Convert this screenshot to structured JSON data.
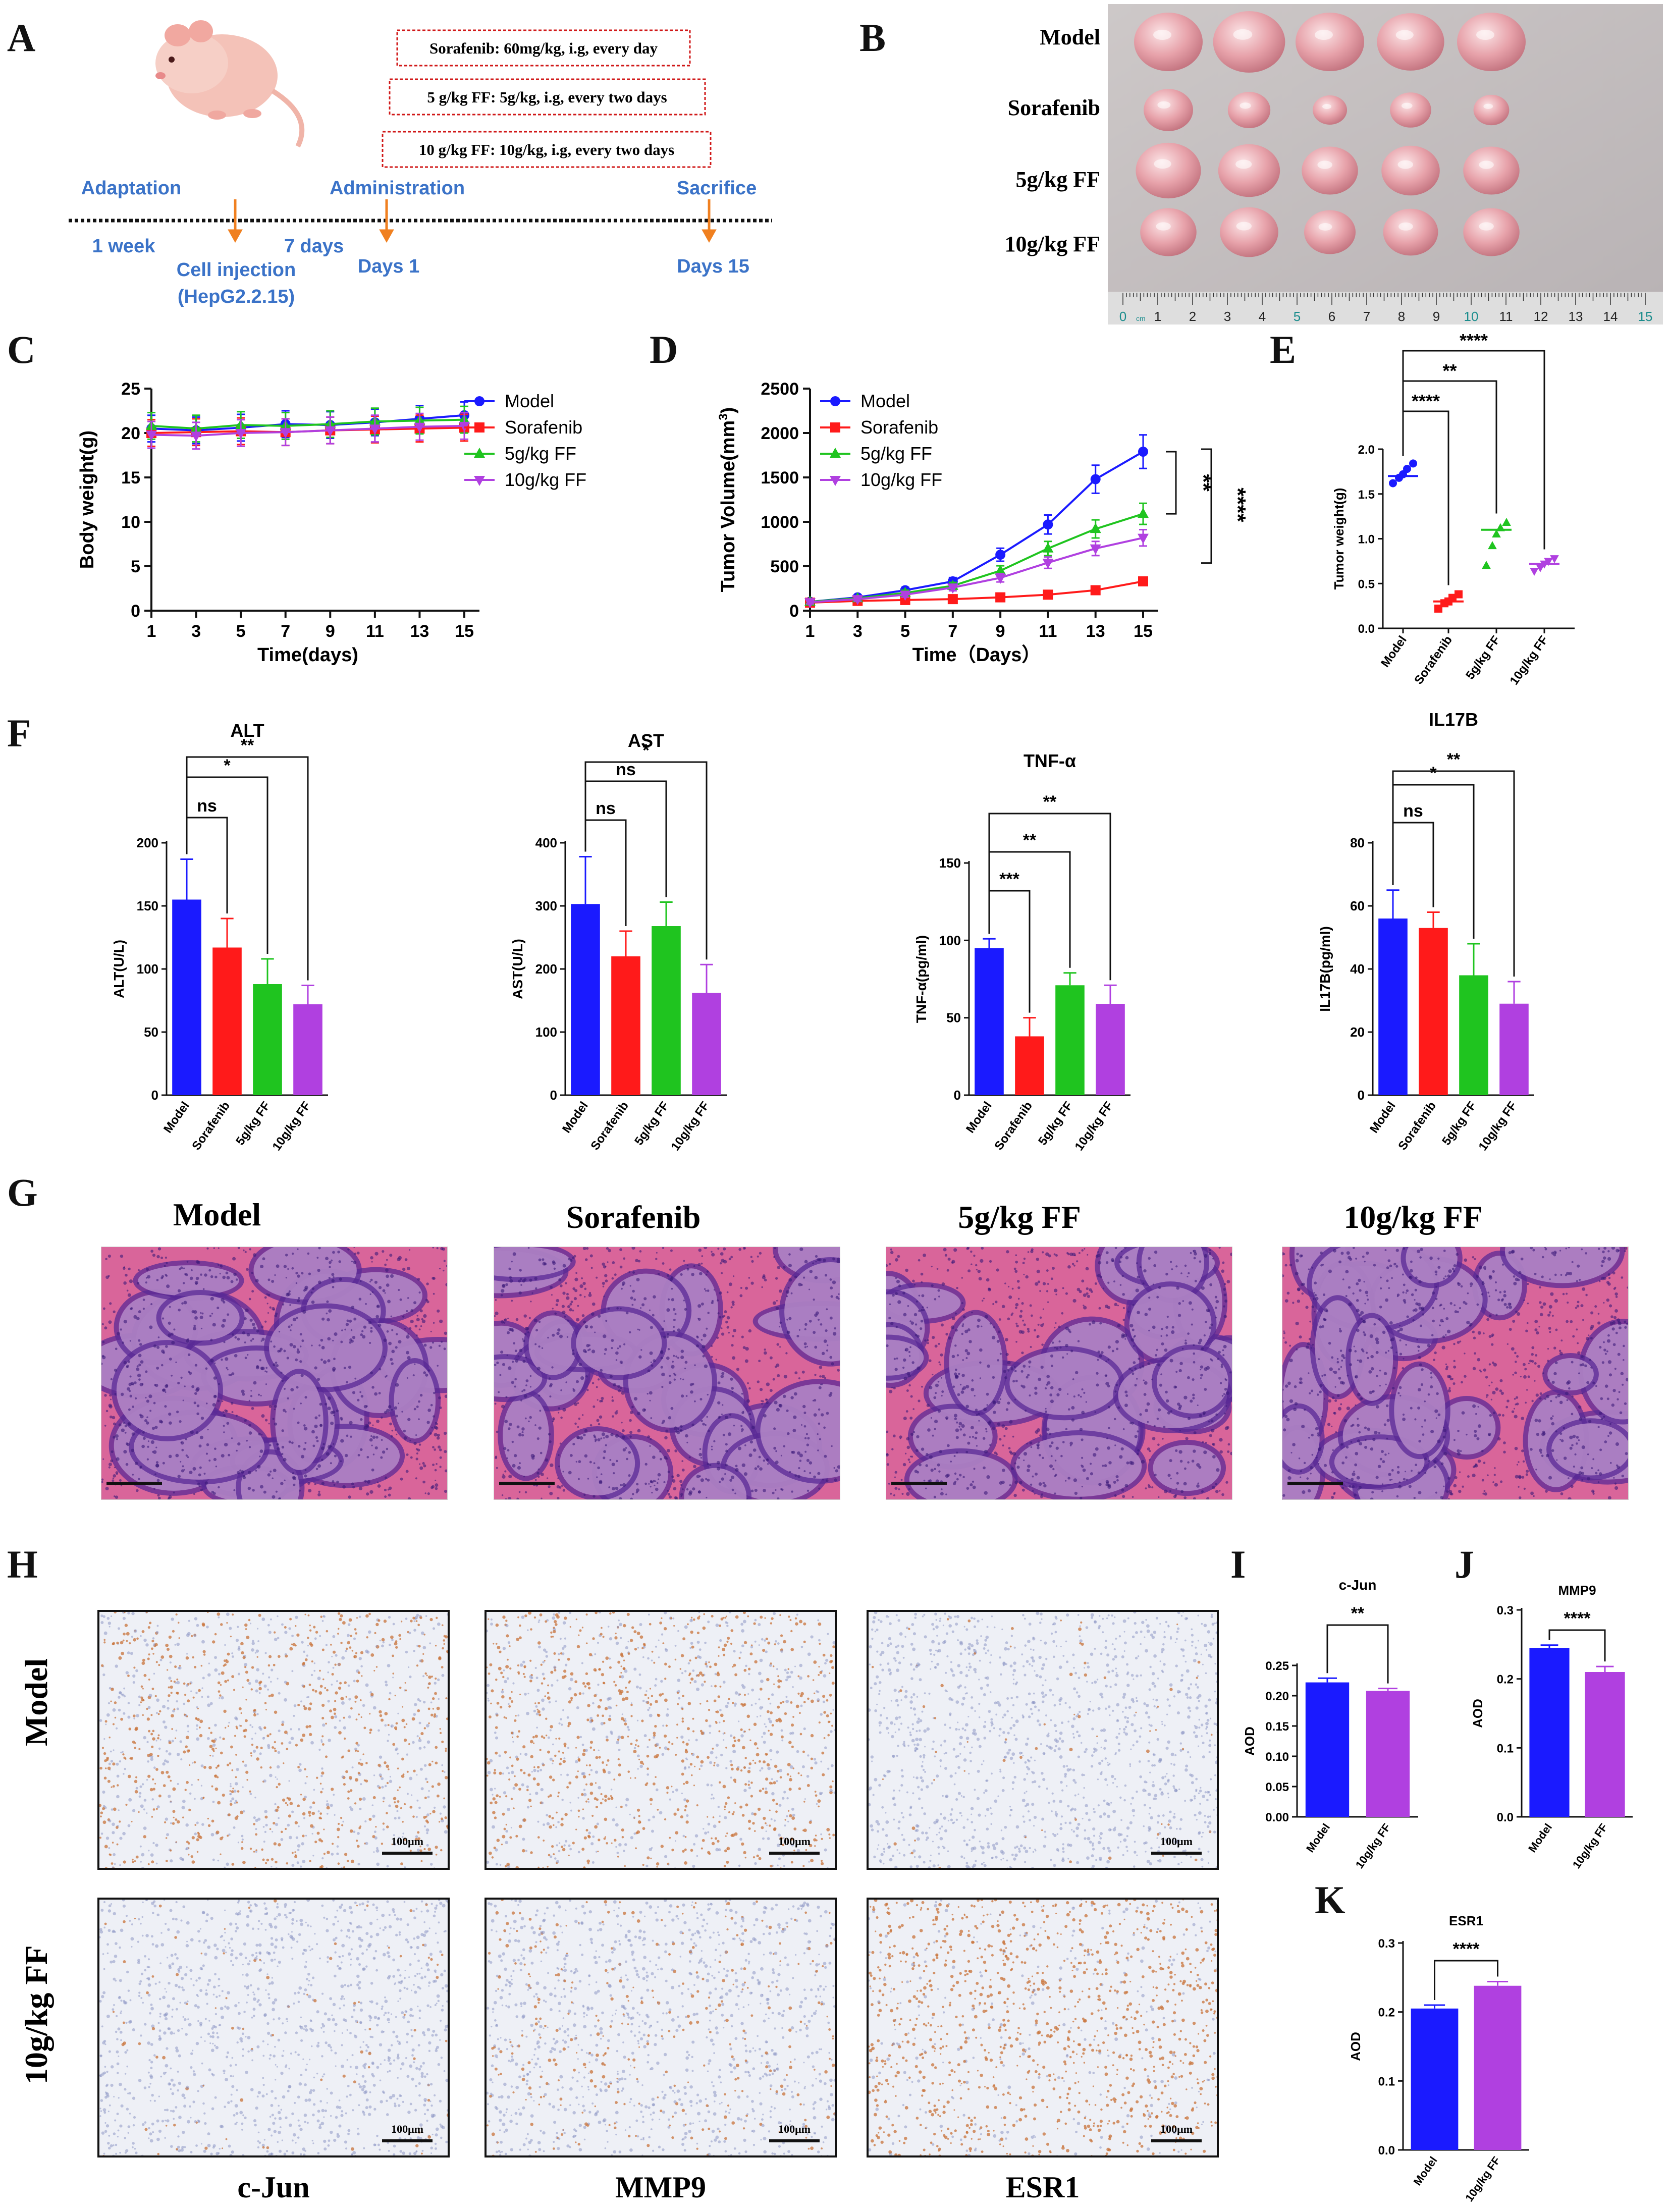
{
  "panel_labels": [
    "A",
    "B",
    "C",
    "D",
    "E",
    "F",
    "G",
    "H",
    "I",
    "J",
    "K"
  ],
  "panelA": {
    "boxes": [
      "Sorafenib: 60mg/kg, i.g, every day",
      "5 g/kg FF: 5g/kg, i.g, every two days",
      "10 g/kg FF: 10g/kg, i.g, every two days"
    ],
    "top_labels": [
      "Adaptation",
      "Administration",
      "Sacrifice"
    ],
    "bottom_labels": [
      "1 week",
      "Cell injection",
      "(HepG2.2.15)",
      "7 days",
      "Days 1",
      "Days 15"
    ]
  },
  "panelB": {
    "rows": [
      "Model",
      "Sorafenib",
      "5g/kg FF",
      "10g/kg FF"
    ],
    "ruler_numbers": [
      "0",
      "1",
      "2",
      "3",
      "4",
      "5",
      "6",
      "7",
      "8",
      "9",
      "10",
      "11",
      "12",
      "13",
      "14",
      "15"
    ],
    "ruler_unit": "cm"
  },
  "colors": {
    "model": "#1a1aff",
    "sorafenib": "#ff1a1a",
    "ff5": "#1fc41f",
    "ff10": "#b040e0"
  },
  "groups": [
    "Model",
    "Sorafenib",
    "5g/kg FF",
    "10g/kg FF"
  ],
  "chart_data": [
    {
      "id": "C",
      "type": "line",
      "xlabel": "Time(days)",
      "ylabel": "Body weight(g)",
      "x": [
        1,
        3,
        5,
        7,
        9,
        11,
        13,
        15
      ],
      "ylim": [
        0,
        25
      ],
      "yticks": [
        0,
        5,
        10,
        15,
        20,
        25
      ],
      "series": [
        {
          "name": "Model",
          "values": [
            20.5,
            20.3,
            20.6,
            21.0,
            20.9,
            21.2,
            21.6,
            22.0
          ]
        },
        {
          "name": "Sorafenib",
          "values": [
            20.0,
            20.1,
            20.2,
            20.1,
            20.3,
            20.4,
            20.5,
            20.6
          ]
        },
        {
          "name": "5g/kg FF",
          "values": [
            20.8,
            20.5,
            20.9,
            20.8,
            21.0,
            21.3,
            21.4,
            21.5
          ]
        },
        {
          "name": "10g/kg FF",
          "values": [
            19.8,
            19.7,
            20.0,
            20.1,
            20.3,
            20.5,
            20.7,
            20.8
          ]
        }
      ]
    },
    {
      "id": "D",
      "type": "line",
      "xlabel": "Time（Days）",
      "ylabel": "Tumor Volume(mm",
      "x": [
        1,
        3,
        5,
        7,
        9,
        11,
        13,
        15
      ],
      "ylim": [
        0,
        2500
      ],
      "yticks": [
        0,
        500,
        1000,
        1500,
        2000,
        2500
      ],
      "series": [
        {
          "name": "Model",
          "values": [
            100,
            150,
            230,
            330,
            630,
            970,
            1480,
            1790
          ]
        },
        {
          "name": "Sorafenib",
          "values": [
            90,
            110,
            120,
            130,
            150,
            180,
            230,
            330
          ]
        },
        {
          "name": "5g/kg FF",
          "values": [
            100,
            140,
            200,
            280,
            450,
            700,
            920,
            1090
          ]
        },
        {
          "name": "10g/kg FF",
          "values": [
            95,
            130,
            180,
            260,
            370,
            540,
            700,
            820
          ]
        }
      ],
      "sig": [
        "**",
        "****"
      ]
    },
    {
      "id": "E",
      "type": "scatter",
      "ylabel": "Tumor weight(g)",
      "ylim": [
        0,
        2.0
      ],
      "yticks": [
        "0.0",
        "0.5",
        "1.0",
        "1.5",
        "2.0"
      ],
      "categories": [
        "Model",
        "Sorafenib",
        "5g/kg FF",
        "10g/kg FF"
      ],
      "points": [
        [
          1.62,
          1.68,
          1.72,
          1.78,
          1.84
        ],
        [
          0.22,
          0.28,
          0.3,
          0.34,
          0.38
        ],
        [
          0.7,
          0.92,
          1.05,
          1.12,
          1.18
        ],
        [
          0.64,
          0.68,
          0.72,
          0.75,
          0.78
        ]
      ],
      "means": [
        1.7,
        0.3,
        1.1,
        0.72
      ],
      "sig": [
        "****",
        "**",
        "****"
      ]
    },
    {
      "id": "F1",
      "type": "bar",
      "title": "ALT",
      "ylabel": "ALT(U/L)",
      "ylim": [
        0,
        200
      ],
      "yticks": [
        0,
        50,
        100,
        150,
        200
      ],
      "categories": [
        "Model",
        "Sorafenib",
        "5g/kg FF",
        "10g/kg FF"
      ],
      "values": [
        155,
        117,
        88,
        72
      ],
      "errors": [
        32,
        23,
        20,
        15
      ],
      "sig": [
        "ns",
        "*",
        "**"
      ]
    },
    {
      "id": "F2",
      "type": "bar",
      "title": "AST",
      "ylabel": "AST(U/L)",
      "ylim": [
        0,
        400
      ],
      "yticks": [
        0,
        100,
        200,
        300,
        400
      ],
      "categories": [
        "Model",
        "Sorafenib",
        "5g/kg FF",
        "10g/kg FF"
      ],
      "values": [
        303,
        220,
        268,
        162
      ],
      "errors": [
        75,
        40,
        38,
        45
      ],
      "sig": [
        "ns",
        "ns",
        "*"
      ]
    },
    {
      "id": "F3",
      "type": "bar",
      "title": "TNF-α",
      "ylabel": "TNF-α(pg/ml)",
      "ylim": [
        0,
        150
      ],
      "yticks": [
        0,
        50,
        100,
        150
      ],
      "categories": [
        "Model",
        "Sorafenib",
        "5g/kg FF",
        "10g/kg FF"
      ],
      "values": [
        95,
        38,
        71,
        59
      ],
      "errors": [
        6,
        12,
        8,
        12
      ],
      "sig": [
        "***",
        "**",
        "**"
      ]
    },
    {
      "id": "F4",
      "type": "bar",
      "title": "IL17B",
      "ylabel": "IL17B(pg/ml)",
      "ylim": [
        0,
        80
      ],
      "yticks": [
        0,
        20,
        40,
        60,
        80
      ],
      "categories": [
        "Model",
        "Sorafenib",
        "5g/kg FF",
        "10g/kg FF"
      ],
      "values": [
        56,
        53,
        38,
        29
      ],
      "errors": [
        9,
        5,
        10,
        7
      ],
      "sig": [
        "ns",
        "*",
        "**"
      ]
    },
    {
      "id": "I",
      "type": "bar",
      "title": "c-Jun",
      "ylabel": "AOD",
      "ylim": [
        0,
        0.25
      ],
      "yticks": [
        "0.00",
        "0.05",
        "0.10",
        "0.15",
        "0.20",
        "0.25"
      ],
      "categories": [
        "Model",
        "10g/kg FF"
      ],
      "values": [
        0.222,
        0.208
      ],
      "errors": [
        0.007,
        0.004
      ],
      "sig": [
        "**"
      ]
    },
    {
      "id": "J",
      "type": "bar",
      "title": "MMP9",
      "ylabel": "AOD",
      "ylim": [
        0,
        0.3
      ],
      "yticks": [
        "0.0",
        "0.1",
        "0.2",
        "0.3"
      ],
      "categories": [
        "Model",
        "10g/kg FF"
      ],
      "values": [
        0.245,
        0.21
      ],
      "errors": [
        0.004,
        0.008
      ],
      "sig": [
        "****"
      ]
    },
    {
      "id": "K",
      "type": "bar",
      "title": "ESR1",
      "ylabel": "AOD",
      "ylim": [
        0,
        0.3
      ],
      "yticks": [
        "0.0",
        "0.1",
        "0.2",
        "0.3"
      ],
      "categories": [
        "Model",
        "10g/kg FF"
      ],
      "values": [
        0.205,
        0.238
      ],
      "errors": [
        0.005,
        0.006
      ],
      "sig": [
        "****"
      ]
    }
  ],
  "panelG": {
    "titles": [
      "Model",
      "Sorafenib",
      "5g/kg FF",
      "10g/kg FF"
    ]
  },
  "panelH": {
    "row_labels": [
      "Model",
      "10g/kg FF"
    ],
    "col_labels": [
      "c-Jun",
      "MMP9",
      "ESR1"
    ],
    "scale": "100μm"
  }
}
